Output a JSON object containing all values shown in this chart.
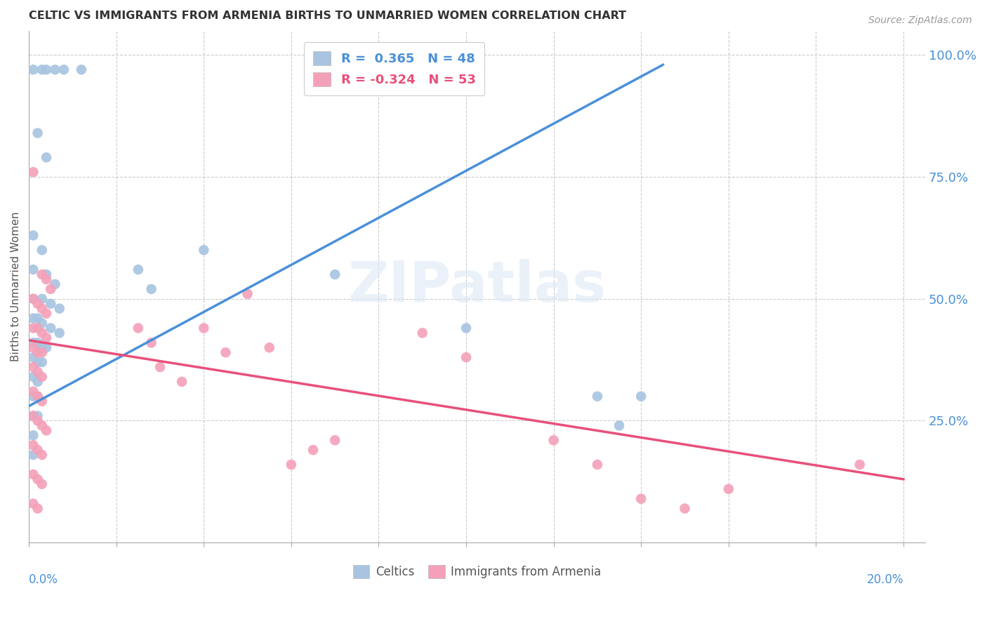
{
  "title": "CELTIC VS IMMIGRANTS FROM ARMENIA BIRTHS TO UNMARRIED WOMEN CORRELATION CHART",
  "source": "Source: ZipAtlas.com",
  "ylabel": "Births to Unmarried Women",
  "celtic_color": "#a8c4e0",
  "armenia_color": "#f4a0b8",
  "trendline_celtic_color": "#4a90d9",
  "trendline_armenia_color": "#e8507a",
  "watermark": "ZIPatlas",
  "celtic_trendline": [
    [
      0.0,
      0.28
    ],
    [
      0.145,
      0.98
    ]
  ],
  "armenia_trendline": [
    [
      0.0,
      0.415
    ],
    [
      0.2,
      0.13
    ]
  ],
  "celtic_scatter": [
    [
      0.001,
      0.97
    ],
    [
      0.003,
      0.97
    ],
    [
      0.004,
      0.97
    ],
    [
      0.006,
      0.97
    ],
    [
      0.008,
      0.97
    ],
    [
      0.012,
      0.97
    ],
    [
      0.002,
      0.84
    ],
    [
      0.004,
      0.79
    ],
    [
      0.001,
      0.63
    ],
    [
      0.003,
      0.6
    ],
    [
      0.001,
      0.56
    ],
    [
      0.004,
      0.55
    ],
    [
      0.006,
      0.53
    ],
    [
      0.001,
      0.5
    ],
    [
      0.003,
      0.5
    ],
    [
      0.005,
      0.49
    ],
    [
      0.007,
      0.48
    ],
    [
      0.001,
      0.46
    ],
    [
      0.002,
      0.46
    ],
    [
      0.003,
      0.45
    ],
    [
      0.005,
      0.44
    ],
    [
      0.007,
      0.43
    ],
    [
      0.001,
      0.41
    ],
    [
      0.002,
      0.41
    ],
    [
      0.003,
      0.4
    ],
    [
      0.004,
      0.4
    ],
    [
      0.001,
      0.38
    ],
    [
      0.002,
      0.37
    ],
    [
      0.003,
      0.37
    ],
    [
      0.001,
      0.34
    ],
    [
      0.002,
      0.33
    ],
    [
      0.001,
      0.3
    ],
    [
      0.002,
      0.3
    ],
    [
      0.001,
      0.26
    ],
    [
      0.002,
      0.26
    ],
    [
      0.001,
      0.22
    ],
    [
      0.001,
      0.18
    ],
    [
      0.025,
      0.56
    ],
    [
      0.028,
      0.52
    ],
    [
      0.04,
      0.6
    ],
    [
      0.07,
      0.55
    ],
    [
      0.1,
      0.44
    ],
    [
      0.13,
      0.3
    ],
    [
      0.14,
      0.3
    ],
    [
      0.135,
      0.24
    ]
  ],
  "armenia_scatter": [
    [
      0.001,
      0.76
    ],
    [
      0.003,
      0.55
    ],
    [
      0.004,
      0.54
    ],
    [
      0.005,
      0.52
    ],
    [
      0.001,
      0.5
    ],
    [
      0.002,
      0.49
    ],
    [
      0.003,
      0.48
    ],
    [
      0.004,
      0.47
    ],
    [
      0.001,
      0.44
    ],
    [
      0.002,
      0.44
    ],
    [
      0.003,
      0.43
    ],
    [
      0.004,
      0.42
    ],
    [
      0.001,
      0.4
    ],
    [
      0.002,
      0.39
    ],
    [
      0.003,
      0.39
    ],
    [
      0.001,
      0.36
    ],
    [
      0.002,
      0.35
    ],
    [
      0.003,
      0.34
    ],
    [
      0.001,
      0.31
    ],
    [
      0.002,
      0.3
    ],
    [
      0.003,
      0.29
    ],
    [
      0.001,
      0.26
    ],
    [
      0.002,
      0.25
    ],
    [
      0.003,
      0.24
    ],
    [
      0.004,
      0.23
    ],
    [
      0.001,
      0.2
    ],
    [
      0.002,
      0.19
    ],
    [
      0.003,
      0.18
    ],
    [
      0.001,
      0.14
    ],
    [
      0.002,
      0.13
    ],
    [
      0.003,
      0.12
    ],
    [
      0.001,
      0.08
    ],
    [
      0.002,
      0.07
    ],
    [
      0.025,
      0.44
    ],
    [
      0.028,
      0.41
    ],
    [
      0.03,
      0.36
    ],
    [
      0.035,
      0.33
    ],
    [
      0.04,
      0.44
    ],
    [
      0.045,
      0.39
    ],
    [
      0.05,
      0.51
    ],
    [
      0.055,
      0.4
    ],
    [
      0.06,
      0.16
    ],
    [
      0.065,
      0.19
    ],
    [
      0.07,
      0.21
    ],
    [
      0.09,
      0.43
    ],
    [
      0.1,
      0.38
    ],
    [
      0.12,
      0.21
    ],
    [
      0.13,
      0.16
    ],
    [
      0.14,
      0.09
    ],
    [
      0.15,
      0.07
    ],
    [
      0.16,
      0.11
    ],
    [
      0.19,
      0.16
    ]
  ],
  "xlim": [
    0.0,
    0.205
  ],
  "ylim": [
    0.0,
    1.05
  ],
  "xticks": [
    0.0,
    0.02,
    0.04,
    0.06,
    0.08,
    0.1,
    0.12,
    0.14,
    0.16,
    0.18,
    0.2
  ],
  "yticks_right": [
    1.0,
    0.75,
    0.5,
    0.25
  ]
}
